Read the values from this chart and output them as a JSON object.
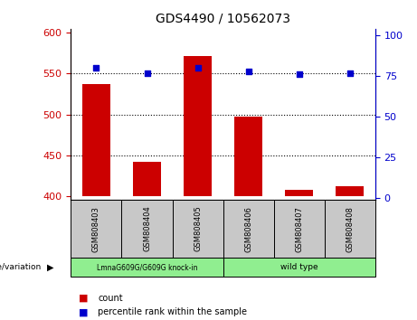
{
  "title": "GDS4490 / 10562073",
  "samples": [
    "GSM808403",
    "GSM808404",
    "GSM808405",
    "GSM808406",
    "GSM808407",
    "GSM808408"
  ],
  "counts": [
    537,
    442,
    572,
    497,
    408,
    412
  ],
  "percentile_ranks": [
    80,
    77,
    80,
    78,
    76,
    77
  ],
  "ylim_left": [
    395,
    605
  ],
  "ylim_right": [
    -1,
    104
  ],
  "yticks_left": [
    400,
    450,
    500,
    550,
    600
  ],
  "yticks_right": [
    0,
    25,
    50,
    75,
    100
  ],
  "grid_values": [
    450,
    500,
    550
  ],
  "bar_color": "#cc0000",
  "dot_color": "#0000cc",
  "bar_bottom": 400,
  "group1_label": "LmnaG609G/G609G knock-in",
  "group2_label": "wild type",
  "group1_indices": [
    0,
    1,
    2
  ],
  "group2_indices": [
    3,
    4,
    5
  ],
  "group1_color": "#90ee90",
  "group2_color": "#90ee90",
  "sample_box_color": "#c8c8c8",
  "legend_count_label": "count",
  "legend_pct_label": "percentile rank within the sample",
  "genotype_label": "genotype/variation",
  "left_axis_color": "#cc0000",
  "right_axis_color": "#0000cc",
  "bar_width": 0.55
}
